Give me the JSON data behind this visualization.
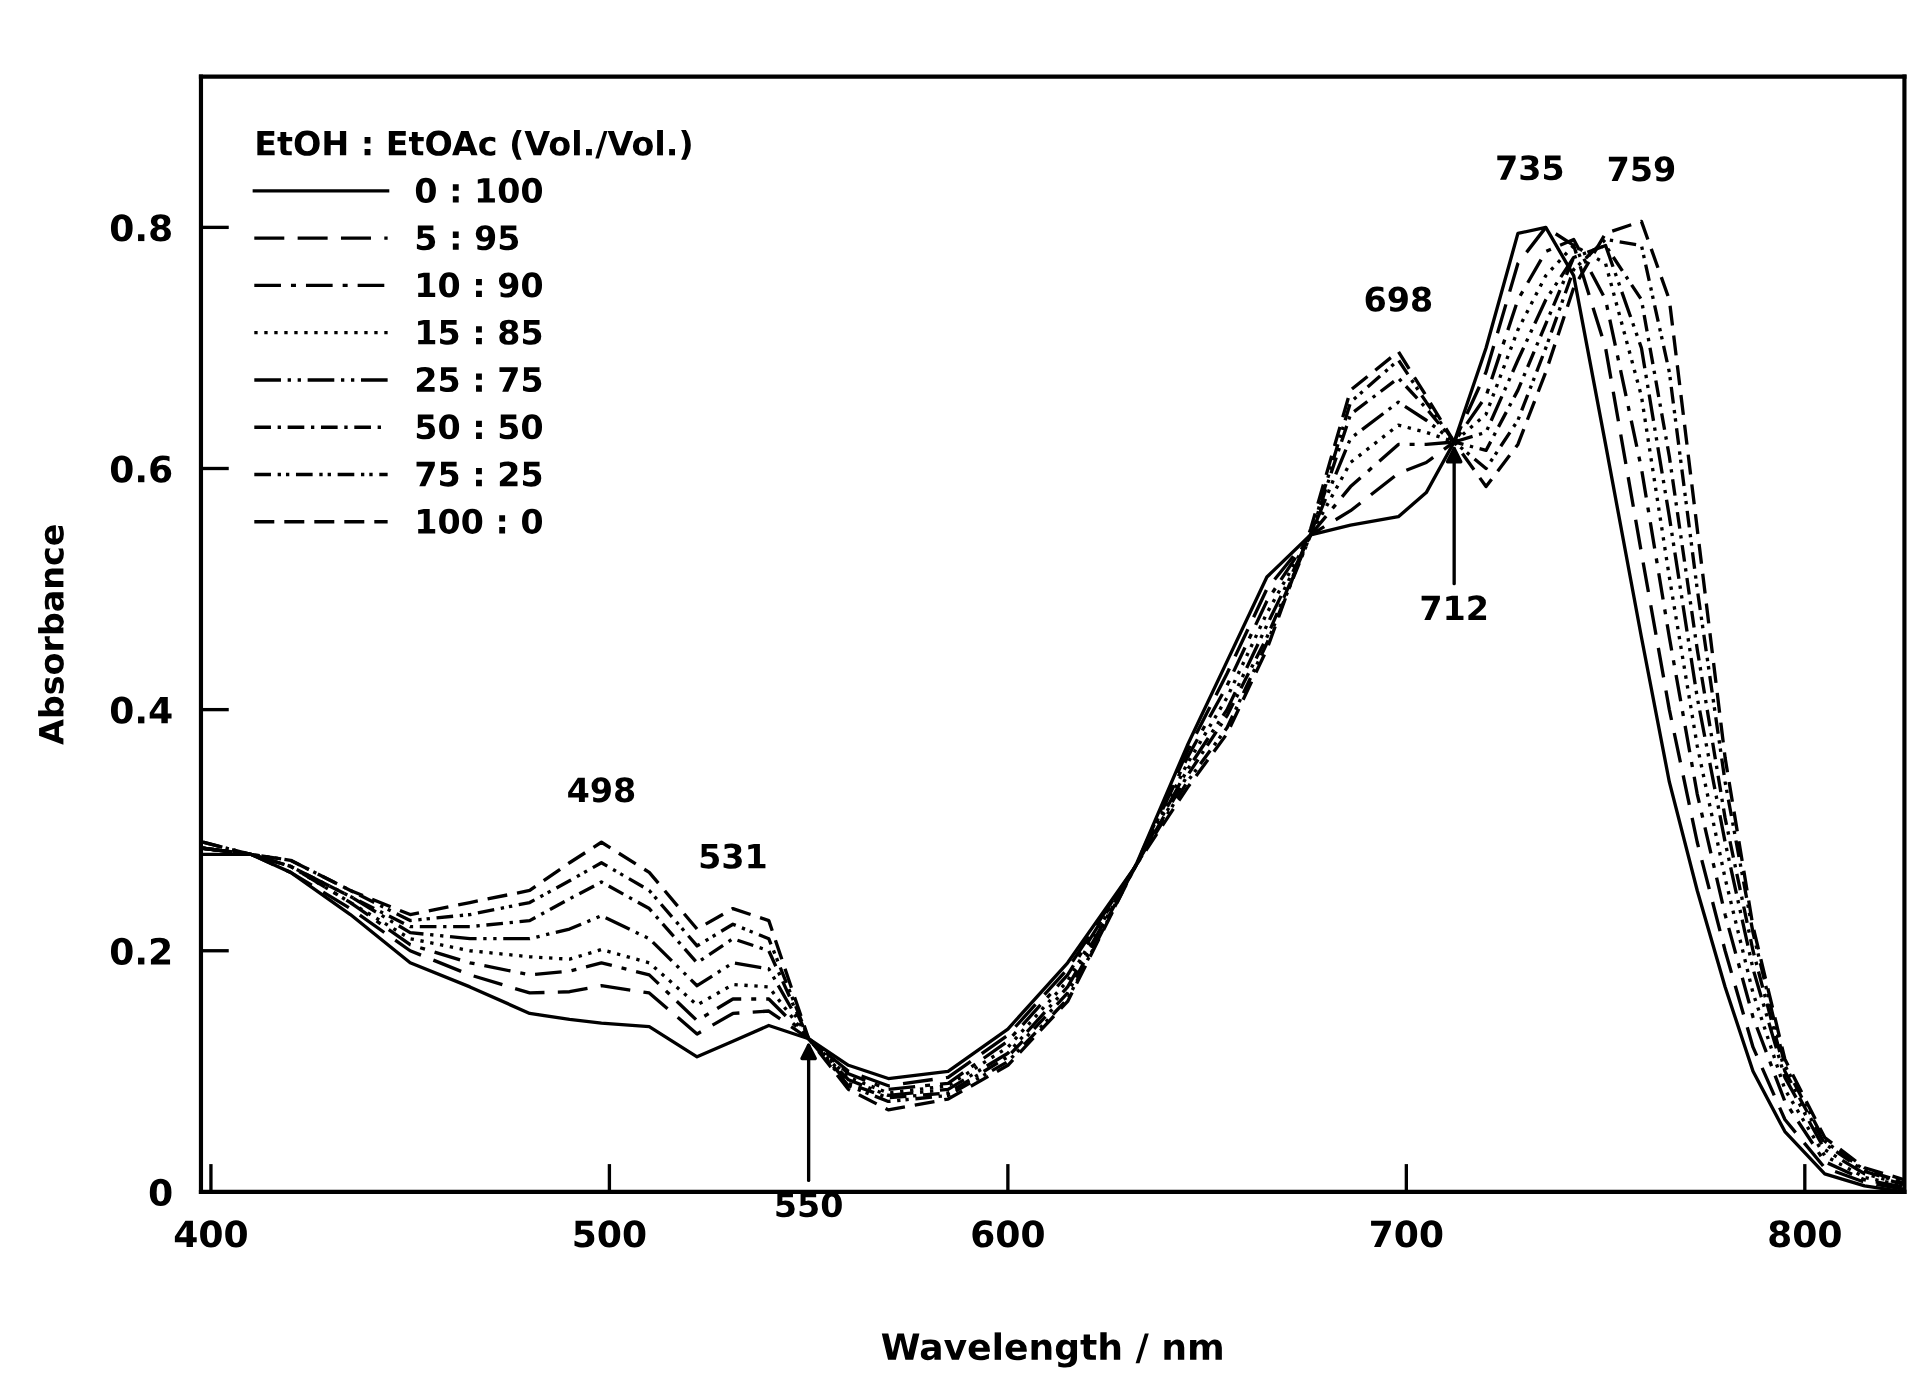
{
  "chart_data": {
    "type": "line",
    "xlabel": "Wavelength / nm",
    "ylabel": "Absorbance",
    "legend_title": "EtOH : EtOAc (Vol./Vol.)",
    "legend": "top left",
    "xlim": [
      397.5,
      825
    ],
    "xticks": [
      400,
      500,
      600,
      700,
      800
    ],
    "ylim": [
      0,
      0.925
    ],
    "yticks": [
      0,
      0.2,
      0.4,
      0.6,
      0.8
    ],
    "x": [
      398,
      410,
      420,
      435,
      450,
      465,
      480,
      490,
      498,
      510,
      522,
      531,
      540,
      550,
      560,
      570,
      585,
      600,
      615,
      632,
      645,
      655,
      665,
      676,
      686,
      698,
      705,
      712,
      720,
      728,
      735,
      742,
      750,
      759,
      766,
      773,
      780,
      787,
      795,
      805,
      815,
      825
    ],
    "series": [
      {
        "name": "0 : 100",
        "color": "#000000",
        "line_style": "solid",
        "values": [
          0.28,
          0.28,
          0.265,
          0.23,
          0.19,
          0.17,
          0.148,
          0.143,
          0.14,
          0.137,
          0.112,
          0.125,
          0.138,
          0.127,
          0.105,
          0.094,
          0.1,
          0.135,
          0.19,
          0.27,
          0.37,
          0.44,
          0.51,
          0.545,
          0.553,
          0.56,
          0.58,
          0.622,
          0.7,
          0.795,
          0.8,
          0.76,
          0.62,
          0.46,
          0.34,
          0.25,
          0.17,
          0.1,
          0.05,
          0.015,
          0.005,
          0.0
        ]
      },
      {
        "name": "5 : 95",
        "color": "#000000",
        "line_style": "long_dashed",
        "values": [
          0.285,
          0.28,
          0.265,
          0.235,
          0.2,
          0.18,
          0.165,
          0.166,
          0.171,
          0.165,
          0.131,
          0.148,
          0.15,
          0.127,
          0.1,
          0.088,
          0.095,
          0.13,
          0.185,
          0.27,
          0.365,
          0.43,
          0.5,
          0.545,
          0.565,
          0.596,
          0.605,
          0.622,
          0.68,
          0.77,
          0.8,
          0.785,
          0.7,
          0.53,
          0.4,
          0.29,
          0.2,
          0.12,
          0.06,
          0.02,
          0.008,
          0.002
        ]
      },
      {
        "name": "10 : 90",
        "color": "#000000",
        "line_style": "dashdot",
        "values": [
          0.285,
          0.28,
          0.27,
          0.24,
          0.205,
          0.19,
          0.18,
          0.183,
          0.19,
          0.18,
          0.142,
          0.16,
          0.16,
          0.127,
          0.098,
          0.085,
          0.09,
          0.125,
          0.18,
          0.27,
          0.36,
          0.42,
          0.49,
          0.545,
          0.585,
          0.62,
          0.62,
          0.622,
          0.66,
          0.74,
          0.78,
          0.79,
          0.74,
          0.6,
          0.46,
          0.33,
          0.23,
          0.145,
          0.075,
          0.025,
          0.01,
          0.004
        ]
      },
      {
        "name": "15 : 85",
        "color": "#000000",
        "line_style": "dotted",
        "values": [
          0.285,
          0.28,
          0.27,
          0.24,
          0.21,
          0.2,
          0.195,
          0.193,
          0.201,
          0.19,
          0.155,
          0.172,
          0.17,
          0.127,
          0.095,
          0.082,
          0.088,
          0.12,
          0.175,
          0.27,
          0.355,
          0.41,
          0.48,
          0.545,
          0.605,
          0.636,
          0.63,
          0.622,
          0.645,
          0.715,
          0.76,
          0.785,
          0.77,
          0.66,
          0.51,
          0.37,
          0.26,
          0.165,
          0.085,
          0.03,
          0.012,
          0.005
        ]
      },
      {
        "name": "25 : 75",
        "color": "#000000",
        "line_style": "dashdotdot",
        "values": [
          0.285,
          0.28,
          0.27,
          0.245,
          0.215,
          0.21,
          0.21,
          0.218,
          0.229,
          0.21,
          0.171,
          0.19,
          0.185,
          0.127,
          0.093,
          0.08,
          0.085,
          0.115,
          0.17,
          0.27,
          0.35,
          0.4,
          0.47,
          0.545,
          0.625,
          0.655,
          0.64,
          0.622,
          0.63,
          0.69,
          0.74,
          0.775,
          0.785,
          0.7,
          0.56,
          0.41,
          0.29,
          0.185,
          0.095,
          0.035,
          0.015,
          0.006
        ]
      },
      {
        "name": "50 : 50",
        "color": "#000000",
        "line_style": "dashdot_short",
        "values": [
          0.285,
          0.28,
          0.27,
          0.245,
          0.22,
          0.22,
          0.225,
          0.243,
          0.257,
          0.235,
          0.19,
          0.21,
          0.2,
          0.127,
          0.09,
          0.078,
          0.082,
          0.112,
          0.165,
          0.27,
          0.345,
          0.395,
          0.46,
          0.545,
          0.645,
          0.675,
          0.65,
          0.622,
          0.615,
          0.665,
          0.72,
          0.775,
          0.785,
          0.74,
          0.61,
          0.45,
          0.31,
          0.2,
          0.1,
          0.04,
          0.017,
          0.007
        ]
      },
      {
        "name": "75 : 25",
        "color": "#000000",
        "line_style": "dashdotdot_short",
        "values": [
          0.29,
          0.28,
          0.275,
          0.25,
          0.225,
          0.23,
          0.24,
          0.258,
          0.273,
          0.25,
          0.204,
          0.222,
          0.21,
          0.127,
          0.088,
          0.075,
          0.08,
          0.108,
          0.16,
          0.27,
          0.34,
          0.385,
          0.455,
          0.545,
          0.655,
          0.69,
          0.655,
          0.622,
          0.6,
          0.64,
          0.7,
          0.765,
          0.79,
          0.785,
          0.68,
          0.5,
          0.34,
          0.215,
          0.105,
          0.042,
          0.018,
          0.008
        ]
      },
      {
        "name": "100 : 0",
        "color": "#000000",
        "line_style": "dashed",
        "values": [
          0.29,
          0.28,
          0.275,
          0.25,
          0.23,
          0.24,
          0.25,
          0.273,
          0.29,
          0.265,
          0.218,
          0.235,
          0.225,
          0.127,
          0.085,
          0.068,
          0.077,
          0.105,
          0.158,
          0.27,
          0.335,
          0.38,
          0.45,
          0.55,
          0.665,
          0.697,
          0.66,
          0.622,
          0.585,
          0.62,
          0.68,
          0.75,
          0.795,
          0.805,
          0.74,
          0.55,
          0.36,
          0.22,
          0.11,
          0.045,
          0.02,
          0.01
        ]
      }
    ],
    "annotations": [
      {
        "text": "498",
        "x": 498,
        "y": 0.29
      },
      {
        "text": "531",
        "x": 531,
        "y": 0.235
      },
      {
        "text": "698",
        "x": 698,
        "y": 0.697
      },
      {
        "text": "735",
        "x": 731,
        "y": 0.806
      },
      {
        "text": "759",
        "x": 759,
        "y": 0.805
      },
      {
        "text": "550",
        "x": 550,
        "y": 0.127
      },
      {
        "text": "712",
        "x": 712,
        "y": 0.622
      }
    ]
  }
}
